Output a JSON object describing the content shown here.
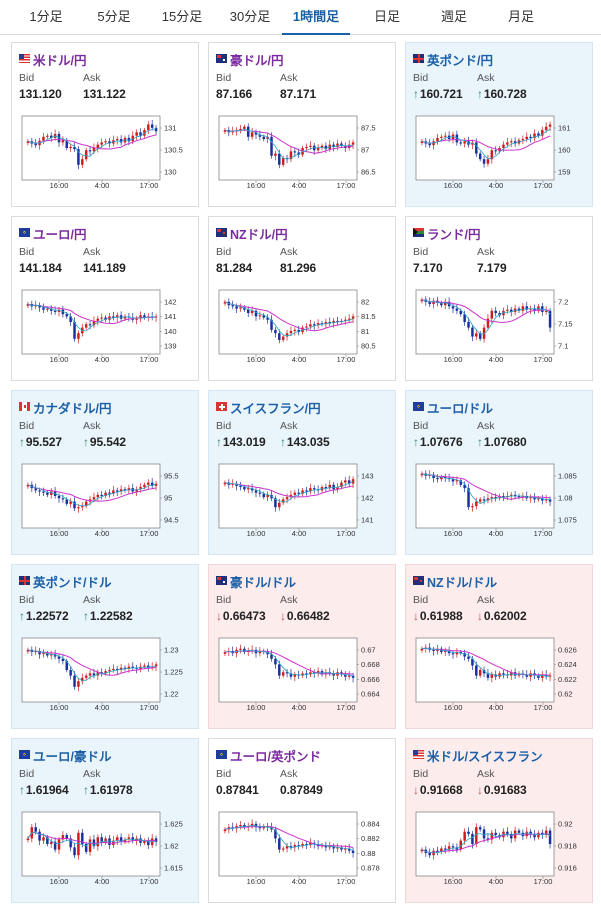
{
  "tabs": [
    {
      "label": "1分足",
      "active": false
    },
    {
      "label": "5分足",
      "active": false
    },
    {
      "label": "15分足",
      "active": false
    },
    {
      "label": "30分足",
      "active": false
    },
    {
      "label": "1時間足",
      "active": true
    },
    {
      "label": "日足",
      "active": false
    },
    {
      "label": "週足",
      "active": false
    },
    {
      "label": "月足",
      "active": false
    }
  ],
  "labels": {
    "bid": "Bid",
    "ask": "Ask"
  },
  "colors": {
    "accent": "#1a5fa8",
    "pair_title": "#7b2aa0",
    "up_bg": "#e9f4fb",
    "down_bg": "#fcecec",
    "up_arrow": "#2a8a6a",
    "down_arrow": "#c45050",
    "candle_up": "#d01c1c",
    "candle_down": "#1a2f9c",
    "ma_short": "#2aa6c8",
    "ma_long": "#cc33cc"
  },
  "cards": [
    {
      "pair": "米ドル/円",
      "flag": "us",
      "state": "none",
      "bid": "131.120",
      "ask": "131.122",
      "bid_dir": "",
      "ask_dir": "",
      "yticks": [
        "131",
        "130.5",
        "130"
      ]
    },
    {
      "pair": "豪ドル/円",
      "flag": "au",
      "state": "none",
      "bid": "87.166",
      "ask": "87.171",
      "bid_dir": "",
      "ask_dir": "",
      "yticks": [
        "87.5",
        "87",
        "86.5"
      ]
    },
    {
      "pair": "英ポンド/円",
      "flag": "gb",
      "state": "up",
      "bid": "160.721",
      "ask": "160.728",
      "bid_dir": "up",
      "ask_dir": "up",
      "yticks": [
        "161",
        "160",
        "159"
      ]
    },
    {
      "pair": "ユーロ/円",
      "flag": "eu",
      "state": "none",
      "bid": "141.184",
      "ask": "141.189",
      "bid_dir": "",
      "ask_dir": "",
      "yticks": [
        "142",
        "141",
        "140",
        "139"
      ]
    },
    {
      "pair": "NZドル/円",
      "flag": "nz",
      "state": "none",
      "bid": "81.284",
      "ask": "81.296",
      "bid_dir": "",
      "ask_dir": "",
      "yticks": [
        "82",
        "81.5",
        "81",
        "80.5"
      ]
    },
    {
      "pair": "ランド/円",
      "flag": "za",
      "state": "none",
      "bid": "7.170",
      "ask": "7.179",
      "bid_dir": "",
      "ask_dir": "",
      "yticks": [
        "7.2",
        "7.15",
        "7.1"
      ]
    },
    {
      "pair": "カナダドル/円",
      "flag": "ca",
      "state": "up",
      "bid": "95.527",
      "ask": "95.542",
      "bid_dir": "up",
      "ask_dir": "up",
      "yticks": [
        "95.5",
        "95",
        "94.5"
      ]
    },
    {
      "pair": "スイスフラン/円",
      "flag": "ch",
      "state": "up",
      "bid": "143.019",
      "ask": "143.035",
      "bid_dir": "up",
      "ask_dir": "up",
      "yticks": [
        "143",
        "142",
        "141"
      ]
    },
    {
      "pair": "ユーロ/ドル",
      "flag": "eu",
      "state": "up",
      "bid": "1.07676",
      "ask": "1.07680",
      "bid_dir": "up",
      "ask_dir": "up",
      "yticks": [
        "1.085",
        "1.08",
        "1.075"
      ]
    },
    {
      "pair": "英ポンド/ドル",
      "flag": "gb",
      "state": "up",
      "bid": "1.22572",
      "ask": "1.22582",
      "bid_dir": "up",
      "ask_dir": "up",
      "yticks": [
        "1.23",
        "1.225",
        "1.22"
      ]
    },
    {
      "pair": "豪ドル/ドル",
      "flag": "au",
      "state": "down",
      "bid": "0.66473",
      "ask": "0.66482",
      "bid_dir": "down",
      "ask_dir": "down",
      "yticks": [
        "0.67",
        "0.668",
        "0.666",
        "0.664"
      ]
    },
    {
      "pair": "NZドル/ドル",
      "flag": "nz",
      "state": "down",
      "bid": "0.61988",
      "ask": "0.62002",
      "bid_dir": "down",
      "ask_dir": "down",
      "yticks": [
        "0.626",
        "0.624",
        "0.622",
        "0.62"
      ]
    },
    {
      "pair": "ユーロ/豪ドル",
      "flag": "eu",
      "state": "up",
      "bid": "1.61964",
      "ask": "1.61978",
      "bid_dir": "up",
      "ask_dir": "up",
      "yticks": [
        "1.625",
        "1.62",
        "1.615"
      ]
    },
    {
      "pair": "ユーロ/英ポンド",
      "flag": "eu",
      "state": "none",
      "bid": "0.87841",
      "ask": "0.87849",
      "bid_dir": "",
      "ask_dir": "",
      "yticks": [
        "0.884",
        "0.882",
        "0.88",
        "0.878"
      ]
    },
    {
      "pair": "米ドル/スイスフラン",
      "flag": "us",
      "state": "down",
      "bid": "0.91668",
      "ask": "0.91683",
      "bid_dir": "down",
      "ask_dir": "down",
      "yticks": [
        "0.92",
        "0.918",
        "0.916"
      ]
    }
  ],
  "chart_data": {
    "type": "candlestick",
    "xticks": [
      "16:00",
      "4:00",
      "17:00"
    ],
    "series": [
      "candles",
      "ma_short",
      "ma_long"
    ],
    "patterns": [
      [
        62,
        58,
        55,
        63,
        70,
        72,
        68,
        75,
        60,
        64,
        50,
        52,
        48,
        20,
        30,
        46,
        44,
        50,
        56,
        60,
        62,
        58,
        64,
        66,
        60,
        68,
        62,
        72,
        78,
        72,
        82,
        92,
        86,
        80
      ],
      [
        82,
        78,
        80,
        82,
        84,
        88,
        70,
        78,
        74,
        70,
        66,
        70,
        36,
        40,
        20,
        32,
        30,
        44,
        42,
        38,
        50,
        52,
        54,
        46,
        50,
        54,
        48,
        56,
        52,
        58,
        54,
        50,
        56,
        60
      ],
      [
        62,
        58,
        55,
        62,
        68,
        70,
        72,
        66,
        74,
        60,
        58,
        62,
        56,
        60,
        40,
        30,
        22,
        30,
        46,
        44,
        50,
        56,
        60,
        62,
        58,
        64,
        66,
        70,
        68,
        76,
        72,
        82,
        88,
        92
      ],
      [
        82,
        78,
        80,
        76,
        72,
        74,
        70,
        68,
        72,
        64,
        60,
        50,
        20,
        30,
        40,
        46,
        44,
        52,
        56,
        58,
        54,
        60,
        58,
        62,
        56,
        60,
        58,
        54,
        56,
        62,
        58,
        60,
        58,
        60
      ],
      [
        86,
        80,
        78,
        74,
        76,
        72,
        66,
        70,
        60,
        62,
        58,
        54,
        36,
        30,
        18,
        24,
        30,
        34,
        36,
        32,
        40,
        42,
        46,
        44,
        48,
        46,
        50,
        48,
        52,
        50,
        52,
        54,
        56,
        60
      ],
      [
        90,
        86,
        82,
        88,
        84,
        80,
        86,
        78,
        74,
        70,
        64,
        50,
        40,
        24,
        30,
        20,
        40,
        56,
        70,
        66,
        62,
        70,
        72,
        68,
        74,
        70,
        78,
        72,
        74,
        70,
        78,
        68,
        70,
        40
      ],
      [
        70,
        64,
        60,
        58,
        56,
        52,
        58,
        50,
        46,
        44,
        36,
        40,
        28,
        30,
        32,
        40,
        44,
        48,
        52,
        50,
        56,
        54,
        60,
        58,
        62,
        60,
        64,
        58,
        62,
        66,
        70,
        74,
        68,
        72
      ],
      [
        74,
        70,
        72,
        68,
        66,
        62,
        64,
        60,
        56,
        54,
        48,
        52,
        46,
        30,
        38,
        44,
        48,
        52,
        56,
        54,
        60,
        58,
        64,
        62,
        60,
        66,
        64,
        70,
        62,
        66,
        74,
        78,
        72,
        80
      ],
      [
        90,
        86,
        88,
        82,
        80,
        84,
        82,
        80,
        76,
        78,
        70,
        64,
        30,
        32,
        40,
        44,
        42,
        46,
        48,
        46,
        50,
        48,
        50,
        52,
        50,
        48,
        50,
        46,
        48,
        44,
        46,
        42,
        44,
        40
      ],
      [
        86,
        82,
        84,
        78,
        80,
        76,
        78,
        74,
        70,
        66,
        50,
        40,
        20,
        30,
        36,
        40,
        44,
        40,
        46,
        44,
        48,
        50,
        52,
        50,
        54,
        52,
        56,
        54,
        52,
        56,
        58,
        54,
        56,
        60
      ],
      [
        82,
        84,
        80,
        86,
        88,
        82,
        84,
        86,
        80,
        84,
        82,
        78,
        70,
        60,
        40,
        46,
        44,
        38,
        42,
        40,
        44,
        42,
        46,
        44,
        48,
        42,
        46,
        44,
        40,
        46,
        42,
        38,
        40,
        36
      ],
      [
        88,
        90,
        86,
        84,
        88,
        82,
        84,
        80,
        78,
        82,
        80,
        74,
        70,
        58,
        40,
        50,
        44,
        36,
        42,
        38,
        44,
        42,
        40,
        46,
        40,
        44,
        42,
        38,
        44,
        40,
        36,
        42,
        38,
        40
      ],
      [
        60,
        80,
        72,
        56,
        62,
        50,
        54,
        40,
        58,
        66,
        60,
        44,
        30,
        70,
        50,
        36,
        58,
        46,
        62,
        52,
        60,
        48,
        56,
        62,
        54,
        58,
        62,
        56,
        60,
        52,
        56,
        48,
        60,
        54
      ],
      [
        76,
        80,
        78,
        82,
        84,
        80,
        82,
        86,
        80,
        78,
        82,
        80,
        76,
        60,
        40,
        42,
        46,
        44,
        48,
        46,
        50,
        48,
        52,
        50,
        46,
        48,
        44,
        46,
        42,
        44,
        40,
        42,
        38,
        34
      ],
      [
        40,
        34,
        30,
        38,
        36,
        42,
        40,
        46,
        44,
        40,
        56,
        72,
        68,
        50,
        80,
        76,
        60,
        58,
        70,
        66,
        62,
        72,
        68,
        60,
        74,
        70,
        64,
        72,
        68,
        62,
        70,
        66,
        74,
        50
      ]
    ]
  }
}
